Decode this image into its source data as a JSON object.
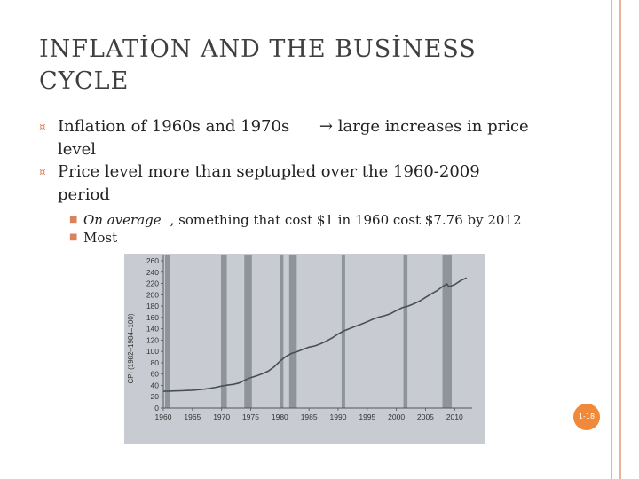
{
  "slide": {
    "title": "INFLATİON  AND THE BUSİNESS CYCLE",
    "bullets": [
      {
        "prefix": "Inflation of 1960s and 1970s",
        "arrow": "→",
        "suffix": "large increases in price level"
      },
      {
        "text": "Price level more than septupled over the 1960-2009 period"
      }
    ],
    "sub_bullets": [
      {
        "em": "On average",
        "text": ", something that cost $1 in 1960 cost $7.76 by 2012"
      },
      {
        "text": "Most"
      }
    ],
    "bullet_marker": "¤",
    "sub_marker": "■",
    "page_number": "1-18",
    "accent_color": "#f08a3a"
  },
  "chart_data": {
    "type": "line",
    "ylabel": "CPI (1982–1984=100)",
    "xlim": [
      1960,
      2013
    ],
    "ylim": [
      0,
      260
    ],
    "x_ticks": [
      "1960",
      "1965",
      "1970",
      "1975",
      "1980",
      "1985",
      "1990",
      "1995",
      "2000",
      "2005",
      "2010"
    ],
    "y_ticks": [
      "0",
      "20",
      "40",
      "60",
      "80",
      "100",
      "120",
      "140",
      "160",
      "180",
      "200",
      "220",
      "240",
      "260"
    ],
    "recessions": [
      [
        1960.3,
        1961.1
      ],
      [
        1969.9,
        1970.9
      ],
      [
        1973.9,
        1975.2
      ],
      [
        1980.0,
        1980.6
      ],
      [
        1981.6,
        1982.9
      ],
      [
        1990.6,
        1991.2
      ],
      [
        2001.2,
        2001.9
      ],
      [
        2007.9,
        2009.5
      ]
    ],
    "series": [
      {
        "x": [
          1960,
          1961,
          1962,
          1963,
          1964,
          1965,
          1966,
          1967,
          1968,
          1969,
          1970,
          1971,
          1972,
          1973,
          1974,
          1975,
          1976,
          1977,
          1978,
          1979,
          1980,
          1981,
          1982,
          1983,
          1984,
          1985,
          1986,
          1987,
          1988,
          1989,
          1990,
          1991,
          1992,
          1993,
          1994,
          1995,
          1996,
          1997,
          1998,
          1999,
          2000,
          2001,
          2002,
          2003,
          2004,
          2005,
          2006,
          2007,
          2008,
          2008.7,
          2009,
          2010,
          2011,
          2012
        ],
        "y": [
          29.6,
          29.9,
          30.2,
          30.6,
          31.0,
          31.5,
          32.4,
          33.4,
          34.8,
          36.7,
          38.8,
          40.5,
          41.8,
          44.4,
          49.3,
          53.8,
          56.9,
          60.6,
          65.2,
          72.6,
          82.4,
          90.9,
          96.5,
          99.6,
          103.9,
          107.6,
          109.6,
          113.6,
          118.3,
          124.0,
          130.7,
          136.2,
          140.3,
          144.5,
          148.2,
          152.4,
          156.9,
          160.5,
          163.0,
          166.6,
          172.2,
          177.1,
          179.9,
          184.0,
          188.9,
          195.3,
          201.6,
          207.3,
          215.3,
          219.0,
          214.5,
          218.1,
          224.9,
          229.6
        ]
      }
    ]
  }
}
